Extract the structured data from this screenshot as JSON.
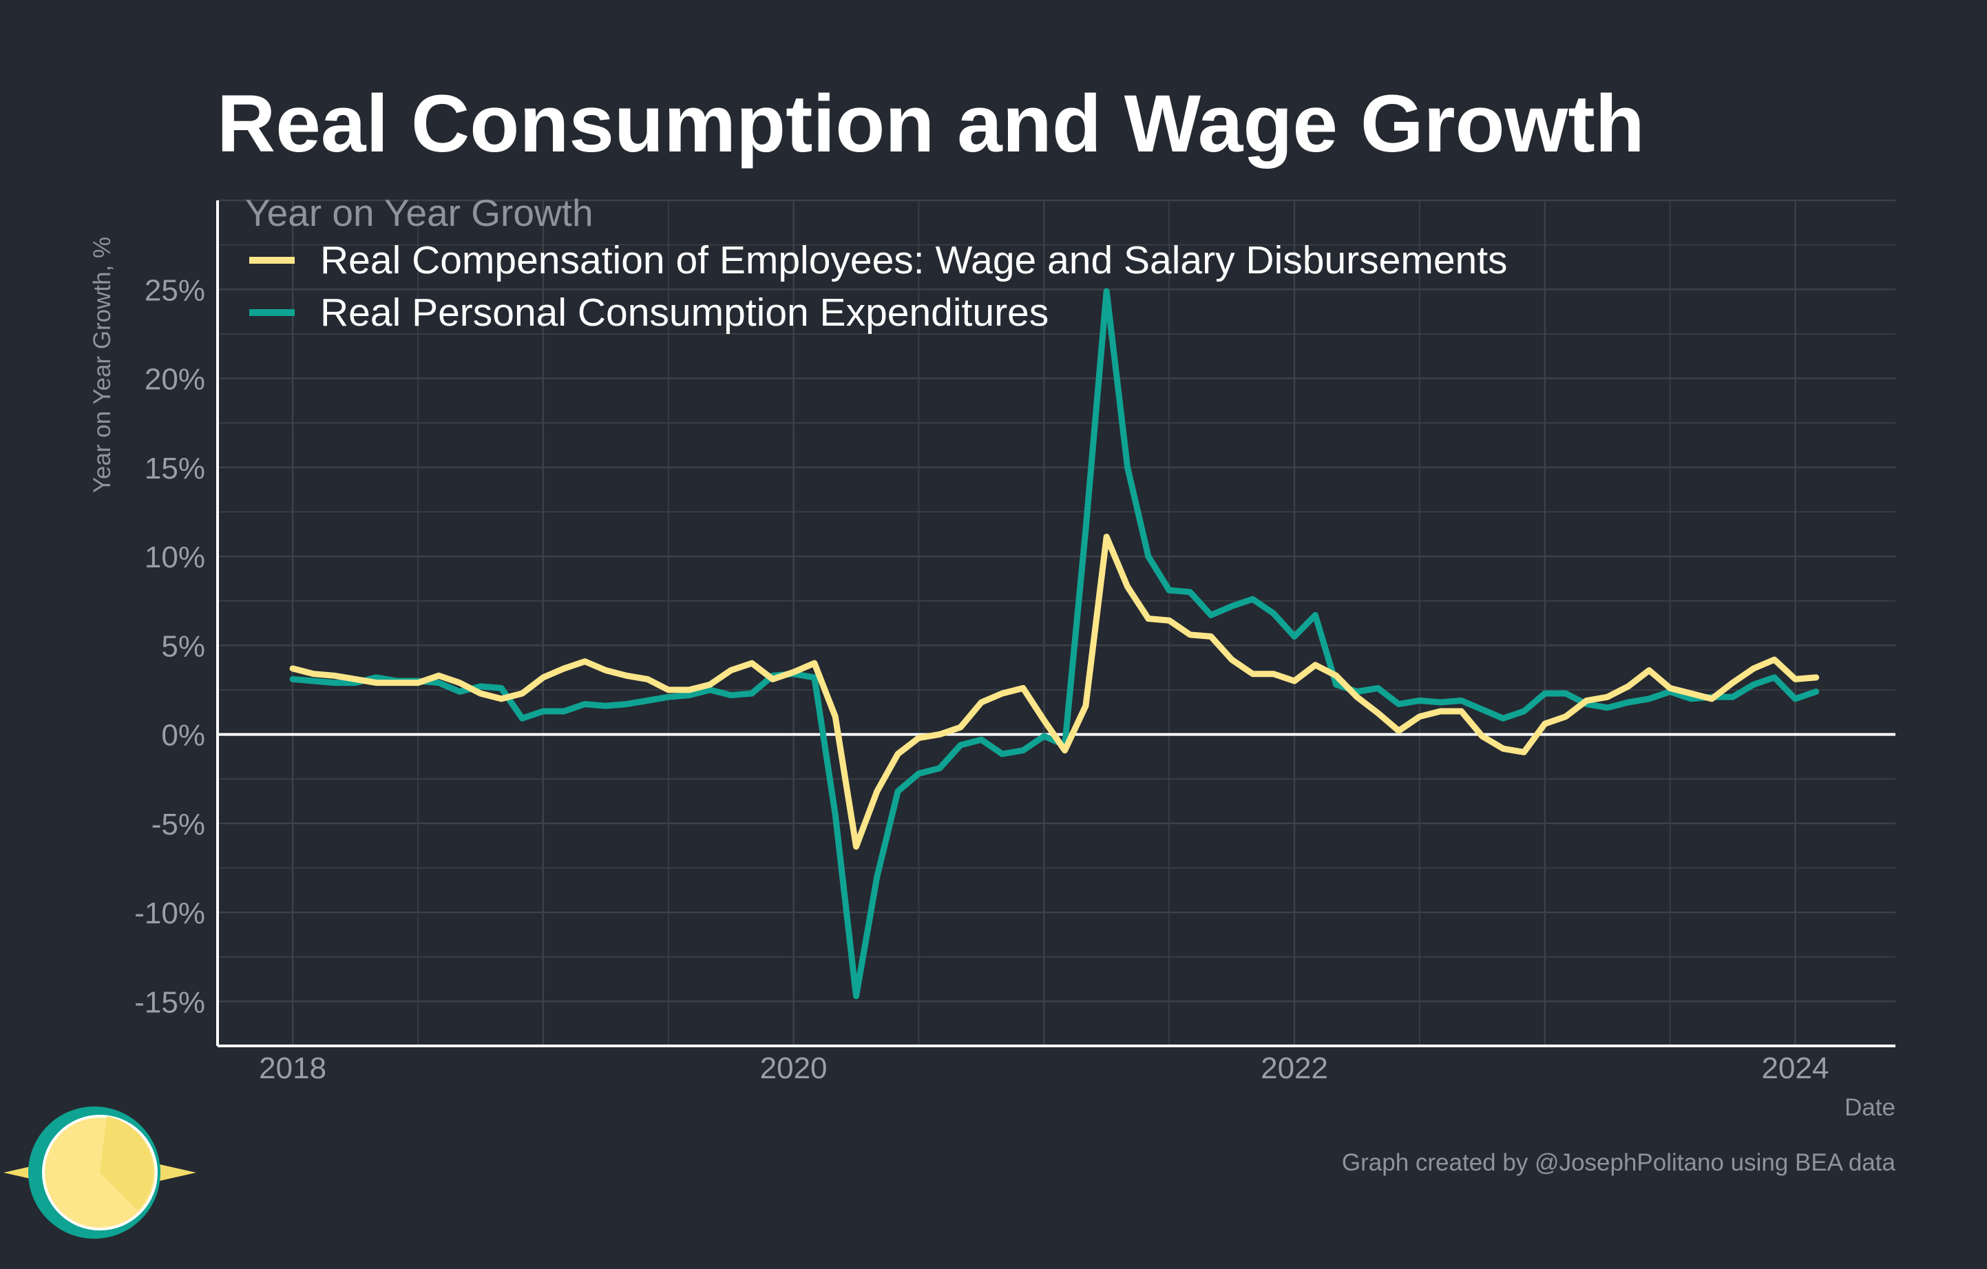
{
  "chart_data": {
    "type": "line",
    "title": "Real Consumption and Wage Growth",
    "xlabel": "Date",
    "ylabel": "Year on Year Growth, %",
    "legend_title": "Year on Year Growth",
    "legend_position": "top-left",
    "grid": true,
    "xlim": [
      2017.7,
      2024.4
    ],
    "ylim": [
      -17.5,
      30
    ],
    "x_ticks": [
      {
        "value": 2018,
        "label": "2018"
      },
      {
        "value": 2020,
        "label": "2020"
      },
      {
        "value": 2022,
        "label": "2022"
      },
      {
        "value": 2024,
        "label": "2024"
      }
    ],
    "y_ticks": [
      {
        "value": -15,
        "label": "-15%"
      },
      {
        "value": -10,
        "label": "-10%"
      },
      {
        "value": -5,
        "label": "-5%"
      },
      {
        "value": 0,
        "label": "0%"
      },
      {
        "value": 5,
        "label": "5%"
      },
      {
        "value": 10,
        "label": "10%"
      },
      {
        "value": 15,
        "label": "15%"
      },
      {
        "value": 20,
        "label": "20%"
      },
      {
        "value": 25,
        "label": "25%"
      }
    ],
    "x": [
      "2018-01",
      "2018-02",
      "2018-03",
      "2018-04",
      "2018-05",
      "2018-06",
      "2018-07",
      "2018-08",
      "2018-09",
      "2018-10",
      "2018-11",
      "2018-12",
      "2019-01",
      "2019-02",
      "2019-03",
      "2019-04",
      "2019-05",
      "2019-06",
      "2019-07",
      "2019-08",
      "2019-09",
      "2019-10",
      "2019-11",
      "2019-12",
      "2020-01",
      "2020-02",
      "2020-03",
      "2020-04",
      "2020-05",
      "2020-06",
      "2020-07",
      "2020-08",
      "2020-09",
      "2020-10",
      "2020-11",
      "2020-12",
      "2021-01",
      "2021-02",
      "2021-03",
      "2021-04",
      "2021-05",
      "2021-06",
      "2021-07",
      "2021-08",
      "2021-09",
      "2021-10",
      "2021-11",
      "2021-12",
      "2022-01",
      "2022-02",
      "2022-03",
      "2022-04",
      "2022-05",
      "2022-06",
      "2022-07",
      "2022-08",
      "2022-09",
      "2022-10",
      "2022-11",
      "2022-12",
      "2023-01",
      "2023-02",
      "2023-03",
      "2023-04",
      "2023-05",
      "2023-06",
      "2023-07",
      "2023-08",
      "2023-09",
      "2023-10",
      "2023-11",
      "2023-12",
      "2024-01",
      "2024-02"
    ],
    "series": [
      {
        "name": "Real Compensation of Employees: Wage and Salary Disbursements",
        "color": "#fde68a",
        "values": [
          3.7,
          3.4,
          3.3,
          3.1,
          2.9,
          2.9,
          2.9,
          3.3,
          2.9,
          2.3,
          2.0,
          2.3,
          3.2,
          3.7,
          4.1,
          3.6,
          3.3,
          3.1,
          2.5,
          2.5,
          2.8,
          3.6,
          4.0,
          3.1,
          3.5,
          4.0,
          1.0,
          -6.3,
          -3.2,
          -1.1,
          -0.2,
          0.0,
          0.4,
          1.8,
          2.3,
          2.6,
          0.8,
          -0.9,
          1.6,
          11.1,
          8.3,
          6.5,
          6.4,
          5.6,
          5.5,
          4.2,
          3.4,
          3.4,
          3.0,
          3.9,
          3.3,
          2.1,
          1.2,
          0.2,
          1.0,
          1.3,
          1.3,
          -0.1,
          -0.8,
          -1.0,
          0.6,
          1.0,
          1.9,
          2.1,
          2.7,
          3.6,
          2.6,
          2.3,
          2.0,
          2.9,
          3.7,
          4.2,
          3.1,
          3.2
        ]
      },
      {
        "name": "Real Personal Consumption Expenditures",
        "color": "#0fa393",
        "values": [
          3.1,
          3.0,
          2.9,
          2.9,
          3.2,
          3.0,
          3.0,
          2.9,
          2.4,
          2.7,
          2.6,
          0.9,
          1.3,
          1.3,
          1.7,
          1.6,
          1.7,
          1.9,
          2.1,
          2.2,
          2.5,
          2.2,
          2.3,
          3.3,
          3.4,
          3.2,
          -4.5,
          -14.7,
          -8.0,
          -3.2,
          -2.2,
          -1.9,
          -0.6,
          -0.3,
          -1.1,
          -0.9,
          -0.1,
          -0.6,
          11.5,
          24.9,
          15.0,
          10.0,
          8.1,
          8.0,
          6.7,
          7.2,
          7.6,
          6.8,
          5.5,
          6.7,
          2.8,
          2.4,
          2.6,
          1.7,
          1.9,
          1.8,
          1.9,
          1.4,
          0.9,
          1.3,
          2.3,
          2.3,
          1.7,
          1.5,
          1.8,
          2.0,
          2.4,
          2.0,
          2.1,
          2.1,
          2.8,
          3.2,
          2.0,
          2.4
        ]
      }
    ],
    "reference_line": 0,
    "credit": "Graph created by @JosephPolitano using BEA data"
  },
  "colors": {
    "background": "#252931",
    "grid": "#3d4148",
    "axis": "#ffffff",
    "sun_body": "#fde68a",
    "sun_ring": "#0fa393",
    "sun_rays": "#f4dc6a"
  },
  "logo": {
    "icon": "sun-icon"
  }
}
